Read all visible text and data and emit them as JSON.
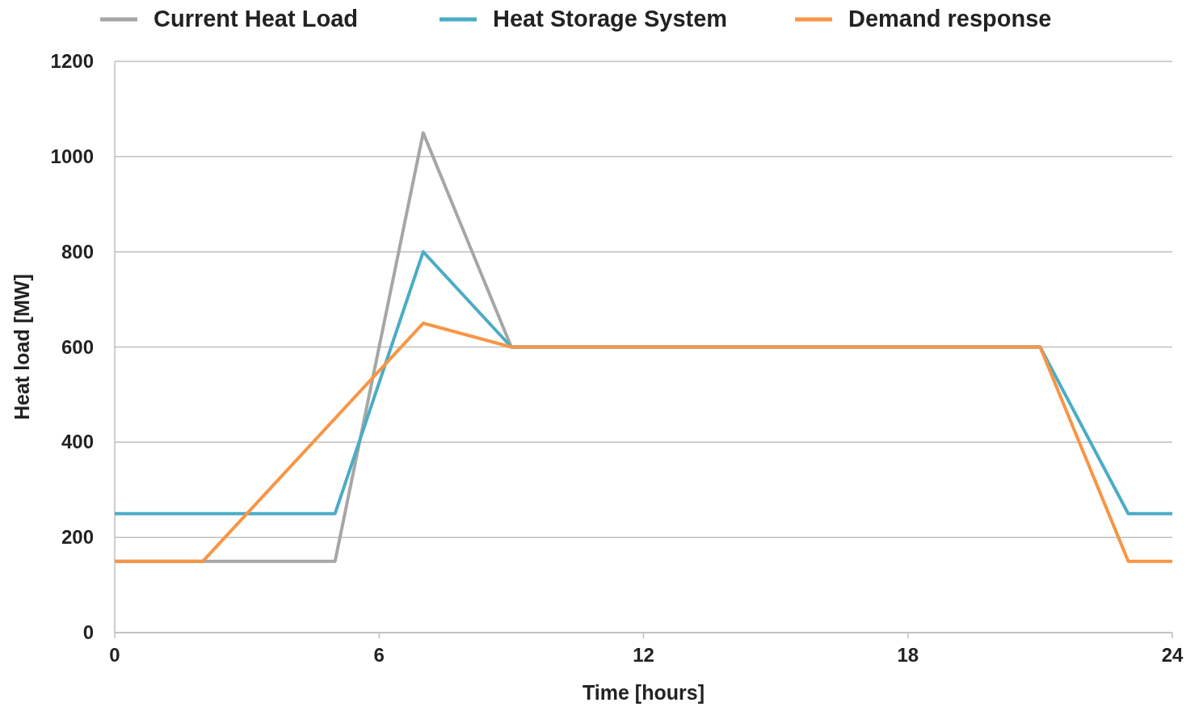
{
  "chart_data": {
    "type": "line",
    "xlabel": "Time [hours]",
    "ylabel": "Heat load [MW]",
    "xlim": [
      0,
      24
    ],
    "xticks": [
      0,
      6,
      12,
      18,
      24
    ],
    "ylim": [
      0,
      1200
    ],
    "yticks": [
      0,
      200,
      400,
      600,
      800,
      1000,
      1200
    ],
    "grid": "y",
    "legend": "top",
    "marker": "none",
    "line_style": "solid",
    "series": [
      {
        "name": "Current Heat Load",
        "color": "#a6a6a6",
        "x": [
          0,
          5,
          7,
          9,
          21
        ],
        "values": [
          150,
          150,
          1050,
          600,
          600
        ]
      },
      {
        "name": "Heat Storage System",
        "color": "#4bacc6",
        "x": [
          0,
          5,
          7,
          9,
          21,
          23,
          24
        ],
        "values": [
          250,
          250,
          800,
          600,
          600,
          250,
          250
        ]
      },
      {
        "name": "Demand response",
        "color": "#f79646",
        "x": [
          0,
          2,
          7,
          9,
          21,
          23,
          24
        ],
        "values": [
          150,
          150,
          650,
          600,
          600,
          150,
          150
        ]
      }
    ]
  }
}
